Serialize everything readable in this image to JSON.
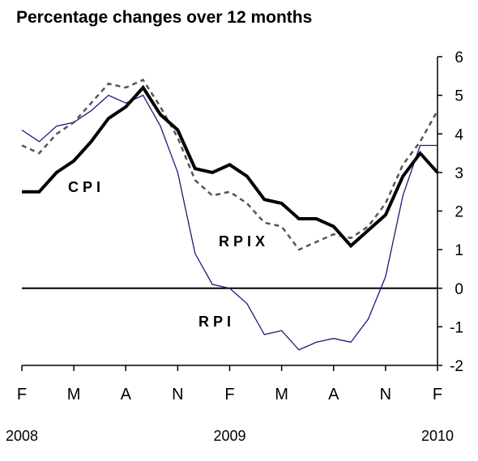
{
  "title": "Percentage changes over 12 months",
  "colors": {
    "cpi": "#000000",
    "rpix": "#555555",
    "rpi": "#1a1a7a",
    "axis": "#000000"
  },
  "chart_data": {
    "type": "line",
    "title": "Percentage changes over 12 months",
    "xlabel": "",
    "ylabel": "",
    "ylim": [
      -2,
      6
    ],
    "y_ticks": [
      "6",
      "5",
      "4",
      "3",
      "2",
      "1",
      "0",
      "-1",
      "-2"
    ],
    "x_tick_labels": [
      "F",
      "M",
      "A",
      "N",
      "F",
      "M",
      "A",
      "N",
      "F"
    ],
    "year_labels": [
      {
        "label": "2008",
        "at_tick": 0
      },
      {
        "label": "2009",
        "at_tick": 4
      },
      {
        "label": "2010",
        "at_tick": 8
      }
    ],
    "months_per_tick": 3,
    "x_months": [
      "2008-02",
      "2008-03",
      "2008-04",
      "2008-05",
      "2008-06",
      "2008-07",
      "2008-08",
      "2008-09",
      "2008-10",
      "2008-11",
      "2008-12",
      "2009-01",
      "2009-02",
      "2009-03",
      "2009-04",
      "2009-05",
      "2009-06",
      "2009-07",
      "2009-08",
      "2009-09",
      "2009-10",
      "2009-11",
      "2009-12",
      "2010-01",
      "2010-02"
    ],
    "grid": false,
    "zero_line": true,
    "series": [
      {
        "name": "CPI",
        "values": [
          2.5,
          2.5,
          3.0,
          3.3,
          3.8,
          4.4,
          4.7,
          5.2,
          4.5,
          4.1,
          3.1,
          3.0,
          3.2,
          2.9,
          2.3,
          2.2,
          1.8,
          1.8,
          1.6,
          1.1,
          1.5,
          1.9,
          2.9,
          3.5,
          3.0
        ]
      },
      {
        "name": "RPIX",
        "values": [
          3.7,
          3.5,
          4.0,
          4.3,
          4.8,
          5.3,
          5.2,
          5.4,
          4.7,
          3.9,
          2.8,
          2.4,
          2.5,
          2.2,
          1.7,
          1.6,
          1.0,
          1.2,
          1.4,
          1.3,
          1.6,
          2.2,
          3.2,
          3.8,
          4.6
        ]
      },
      {
        "name": "RPI",
        "values": [
          4.1,
          3.8,
          4.2,
          4.3,
          4.6,
          5.0,
          4.8,
          5.0,
          4.2,
          3.0,
          0.9,
          0.1,
          0.0,
          -0.4,
          -1.2,
          -1.1,
          -1.6,
          -1.4,
          -1.3,
          -1.4,
          -0.8,
          0.3,
          2.4,
          3.7,
          3.7
        ]
      }
    ],
    "series_labels": {
      "cpi": "CPI",
      "rpix": "RPIX",
      "rpi": "RPI"
    }
  }
}
